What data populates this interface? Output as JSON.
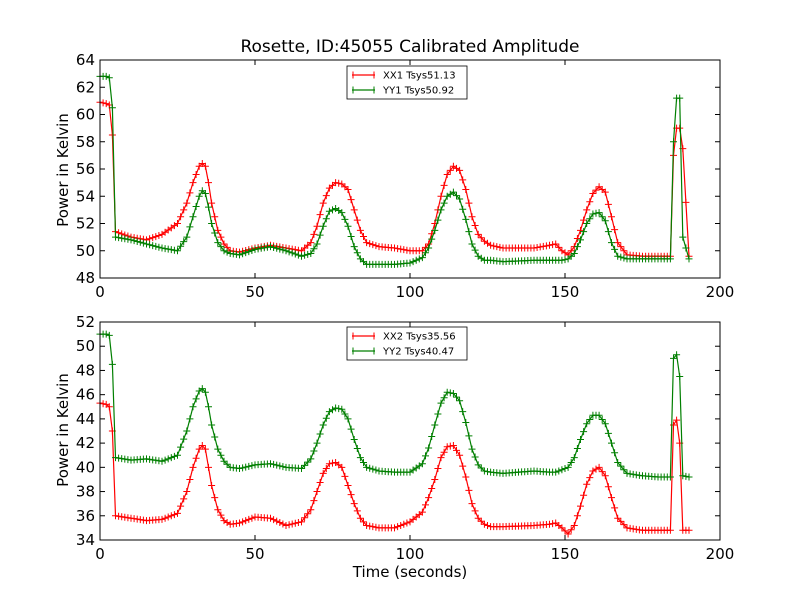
{
  "chart_data": {
    "type": "line",
    "title": "Rosette, ID:45055 Calibrated Amplitude",
    "xlabel": "Time (seconds)",
    "panels": [
      {
        "ylabel": "Power in Kelvin",
        "xlim": [
          0,
          200
        ],
        "ylim": [
          48,
          64
        ],
        "xticks": [
          "0",
          "50",
          "100",
          "150",
          "200"
        ],
        "yticks": [
          "48",
          "50",
          "52",
          "54",
          "56",
          "58",
          "60",
          "62",
          "64"
        ],
        "legend": "top-center",
        "grid": false,
        "series": [
          {
            "name": "XX1 Tsys51.13",
            "color": "#ff0000",
            "x": [
              0,
              2,
              3,
              4,
              5,
              10,
              15,
              20,
              25,
              28,
              30,
              32,
              33,
              34,
              35,
              36,
              38,
              40,
              42,
              45,
              50,
              55,
              60,
              65,
              68,
              70,
              72,
              74,
              76,
              78,
              80,
              82,
              84,
              86,
              90,
              95,
              100,
              104,
              106,
              108,
              110,
              112,
              114,
              116,
              118,
              120,
              122,
              124,
              126,
              130,
              140,
              145,
              147,
              149,
              151,
              153,
              155,
              157,
              159,
              161,
              163,
              165,
              167,
              170,
              175,
              180,
              184,
              185,
              186,
              187,
              188,
              190
            ],
            "y": [
              60.9,
              60.8,
              60.7,
              58.5,
              51.4,
              51.0,
              50.8,
              51.2,
              52.0,
              53.5,
              55.0,
              56.2,
              56.4,
              56.2,
              55.0,
              53.5,
              51.5,
              50.5,
              50.0,
              49.9,
              50.2,
              50.4,
              50.2,
              50.0,
              50.6,
              51.8,
              53.5,
              54.6,
              55.0,
              54.9,
              54.5,
              53.0,
              51.5,
              50.6,
              50.3,
              50.2,
              50.0,
              50.0,
              50.5,
              52.0,
              54.0,
              55.6,
              56.2,
              55.9,
              54.5,
              52.5,
              51.2,
              50.7,
              50.4,
              50.2,
              50.2,
              50.4,
              50.5,
              50.0,
              49.7,
              50.3,
              51.5,
              53.0,
              54.2,
              54.7,
              54.3,
              52.5,
              50.6,
              49.7,
              49.6,
              49.6,
              49.6,
              57.0,
              59.0,
              59.0,
              57.5,
              49.6
            ]
          },
          {
            "name": "YY1 Tsys50.92",
            "color": "#007f00",
            "x": [
              0,
              2,
              3,
              4,
              5,
              10,
              15,
              20,
              25,
              28,
              30,
              32,
              33,
              34,
              35,
              36,
              38,
              40,
              42,
              45,
              50,
              55,
              60,
              65,
              68,
              70,
              72,
              74,
              76,
              78,
              80,
              82,
              84,
              86,
              90,
              95,
              100,
              104,
              106,
              108,
              110,
              112,
              114,
              116,
              118,
              120,
              122,
              124,
              126,
              130,
              140,
              145,
              147,
              149,
              151,
              153,
              155,
              157,
              159,
              161,
              163,
              165,
              167,
              170,
              175,
              180,
              184,
              185,
              186,
              187,
              188,
              190
            ],
            "y": [
              62.8,
              62.8,
              62.7,
              60.5,
              51.0,
              50.8,
              50.5,
              50.2,
              50.0,
              51.0,
              52.5,
              54.0,
              54.4,
              54.2,
              53.2,
              52.0,
              50.6,
              50.0,
              49.8,
              49.7,
              50.1,
              50.3,
              50.0,
              49.6,
              49.8,
              50.5,
              51.8,
              52.9,
              53.1,
              52.8,
              51.8,
              50.3,
              49.4,
              49.0,
              49.0,
              49.0,
              49.1,
              49.5,
              50.2,
              51.5,
              53.0,
              54.0,
              54.3,
              53.8,
              52.3,
              50.5,
              49.6,
              49.3,
              49.3,
              49.2,
              49.3,
              49.3,
              49.3,
              49.3,
              49.4,
              49.8,
              50.8,
              52.0,
              52.7,
              52.8,
              52.2,
              50.6,
              49.6,
              49.4,
              49.4,
              49.4,
              49.4,
              58.0,
              61.2,
              61.2,
              51.0,
              49.4
            ]
          }
        ]
      },
      {
        "ylabel": "Power in Kelvin",
        "xlim": [
          0,
          200
        ],
        "ylim": [
          34,
          52
        ],
        "xticks": [
          "0",
          "50",
          "100",
          "150",
          "200"
        ],
        "yticks": [
          "34",
          "36",
          "38",
          "40",
          "42",
          "44",
          "46",
          "48",
          "50",
          "52"
        ],
        "legend": "top-center",
        "grid": false,
        "series": [
          {
            "name": "XX2 Tsys35.56",
            "color": "#ff0000",
            "x": [
              0,
              2,
              3,
              4,
              5,
              10,
              15,
              20,
              25,
              28,
              30,
              32,
              33,
              34,
              35,
              36,
              38,
              40,
              42,
              45,
              50,
              55,
              60,
              65,
              68,
              70,
              72,
              74,
              76,
              78,
              80,
              82,
              84,
              86,
              90,
              95,
              100,
              104,
              106,
              108,
              110,
              112,
              114,
              116,
              118,
              120,
              122,
              124,
              126,
              130,
              140,
              145,
              147,
              149,
              151,
              153,
              155,
              157,
              159,
              161,
              163,
              165,
              167,
              170,
              175,
              180,
              184,
              185,
              186,
              187,
              188,
              190
            ],
            "y": [
              45.3,
              45.2,
              45.0,
              43.0,
              36.0,
              35.8,
              35.6,
              35.7,
              36.2,
              38.0,
              40.0,
              41.5,
              41.8,
              41.5,
              40.0,
              38.5,
              36.5,
              35.6,
              35.3,
              35.4,
              35.9,
              35.8,
              35.2,
              35.5,
              36.5,
              38.0,
              39.5,
              40.3,
              40.4,
              40.0,
              38.5,
              37.0,
              35.8,
              35.2,
              35.0,
              35.0,
              35.5,
              36.3,
              37.5,
              39.0,
              40.8,
              41.7,
              41.8,
              41.0,
              39.2,
              37.0,
              35.8,
              35.3,
              35.1,
              35.1,
              35.2,
              35.3,
              35.4,
              35.0,
              34.5,
              35.2,
              36.8,
              38.6,
              39.7,
              40.0,
              39.3,
              37.5,
              35.8,
              35.0,
              34.8,
              34.8,
              34.8,
              43.5,
              43.9,
              42.0,
              34.8,
              34.8
            ]
          },
          {
            "name": "YY2 Tsys40.47",
            "color": "#007f00",
            "x": [
              0,
              2,
              3,
              4,
              5,
              10,
              15,
              20,
              25,
              28,
              30,
              32,
              33,
              34,
              35,
              36,
              38,
              40,
              42,
              45,
              50,
              55,
              60,
              65,
              68,
              70,
              72,
              74,
              76,
              78,
              80,
              82,
              84,
              86,
              90,
              95,
              100,
              104,
              106,
              108,
              110,
              112,
              114,
              116,
              118,
              120,
              122,
              124,
              126,
              130,
              140,
              145,
              147,
              149,
              151,
              153,
              155,
              157,
              159,
              161,
              163,
              165,
              167,
              170,
              175,
              180,
              184,
              185,
              186,
              187,
              188,
              190
            ],
            "y": [
              51.0,
              51.0,
              50.9,
              48.5,
              40.8,
              40.6,
              40.7,
              40.5,
              41.0,
              43.0,
              45.0,
              46.3,
              46.5,
              46.2,
              45.0,
              43.5,
              41.5,
              40.5,
              40.0,
              39.9,
              40.2,
              40.3,
              40.0,
              39.9,
              40.7,
              42.0,
              43.5,
              44.6,
              44.9,
              44.8,
              44.0,
              42.3,
              40.8,
              40.0,
              39.7,
              39.6,
              39.6,
              40.3,
              41.6,
              43.5,
              45.3,
              46.2,
              46.1,
              45.5,
              43.7,
              41.5,
              40.2,
              39.7,
              39.6,
              39.5,
              39.7,
              39.6,
              39.6,
              39.8,
              40.0,
              40.8,
              42.3,
              43.6,
              44.3,
              44.3,
              43.6,
              42.0,
              40.4,
              39.5,
              39.3,
              39.2,
              39.2,
              49.0,
              49.3,
              47.5,
              39.3,
              39.2
            ]
          }
        ]
      }
    ]
  }
}
